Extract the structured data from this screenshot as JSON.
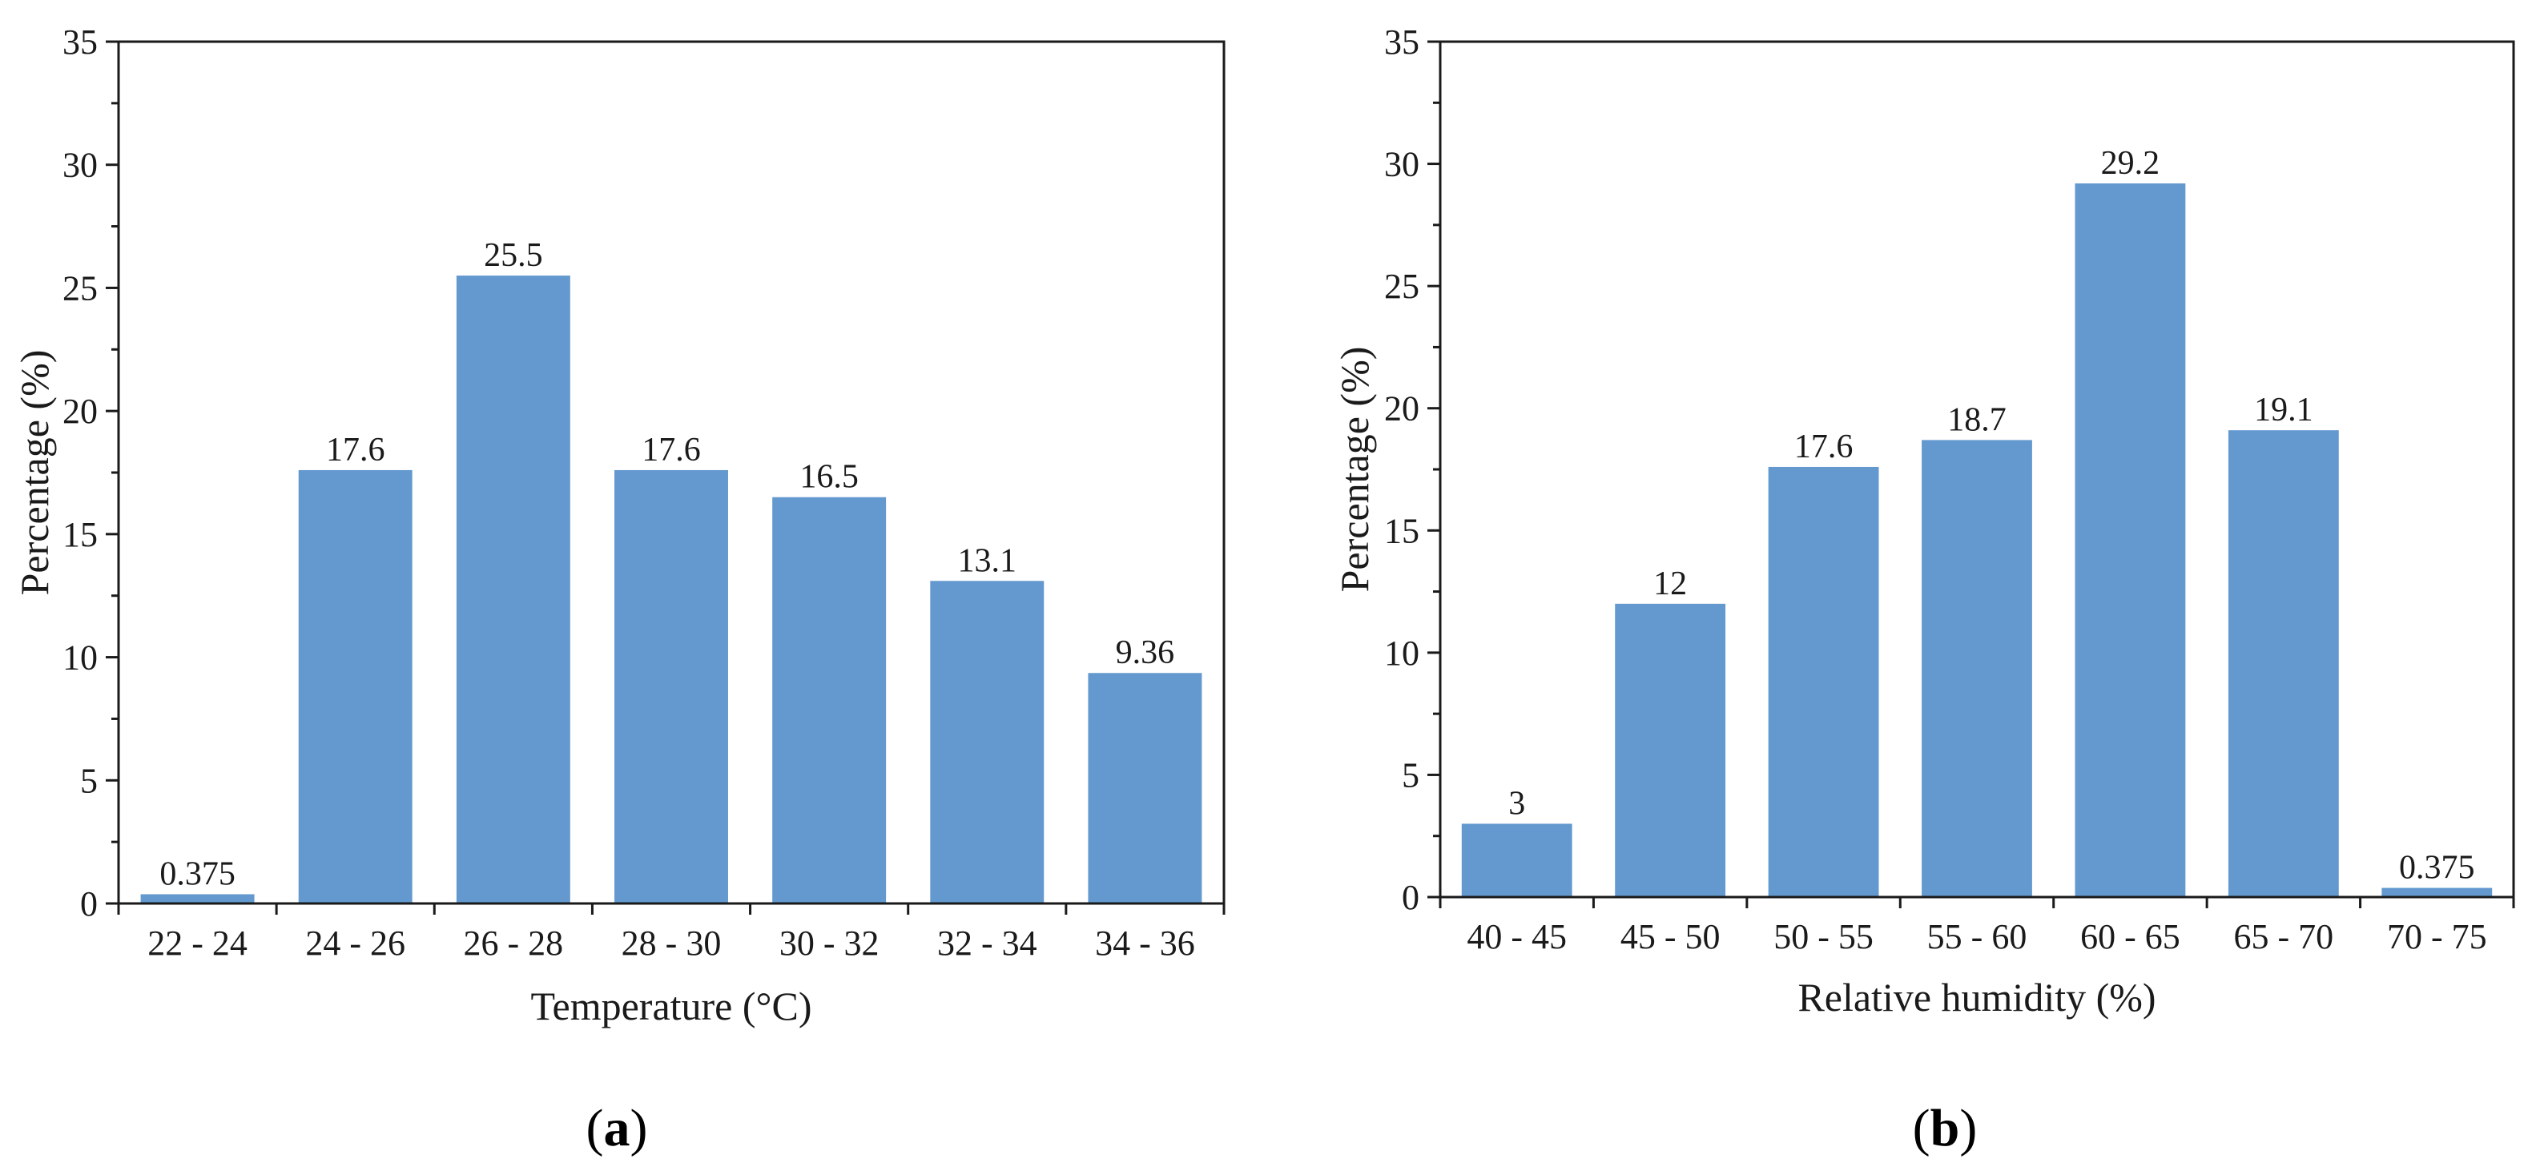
{
  "chart_data": [
    {
      "type": "bar",
      "panel_label": "a",
      "categories": [
        "22 - 24",
        "24 - 26",
        "26 - 28",
        "28 - 30",
        "30 - 32",
        "32 - 34",
        "34 - 36"
      ],
      "values": [
        0.375,
        17.6,
        25.5,
        17.6,
        16.5,
        13.1,
        9.36
      ],
      "value_labels": [
        "0.375",
        "17.6",
        "25.5",
        "17.6",
        "16.5",
        "13.1",
        "9.36"
      ],
      "title": "",
      "xlabel": "Temperature (°C)",
      "ylabel": "Percentage (%)",
      "ylim": [
        0,
        35
      ],
      "yticks": [
        0,
        5,
        10,
        15,
        20,
        25,
        30,
        35
      ],
      "grid": false,
      "bar_color": "#6399CF"
    },
    {
      "type": "bar",
      "panel_label": "b",
      "categories": [
        "40 - 45",
        "45 - 50",
        "50 - 55",
        "55 - 60",
        "60 - 65",
        "65 - 70",
        "70 - 75"
      ],
      "values": [
        3,
        12,
        17.6,
        18.7,
        29.2,
        19.1,
        0.375
      ],
      "value_labels": [
        "3",
        "12",
        "17.6",
        "18.7",
        "29.2",
        "19.1",
        "0.375"
      ],
      "title": "",
      "xlabel": "Relative humidity (%)",
      "ylabel": "Percentage (%)",
      "ylim": [
        0,
        35
      ],
      "yticks": [
        0,
        5,
        10,
        15,
        20,
        25,
        30,
        35
      ],
      "grid": false,
      "bar_color": "#6399CF"
    }
  ]
}
